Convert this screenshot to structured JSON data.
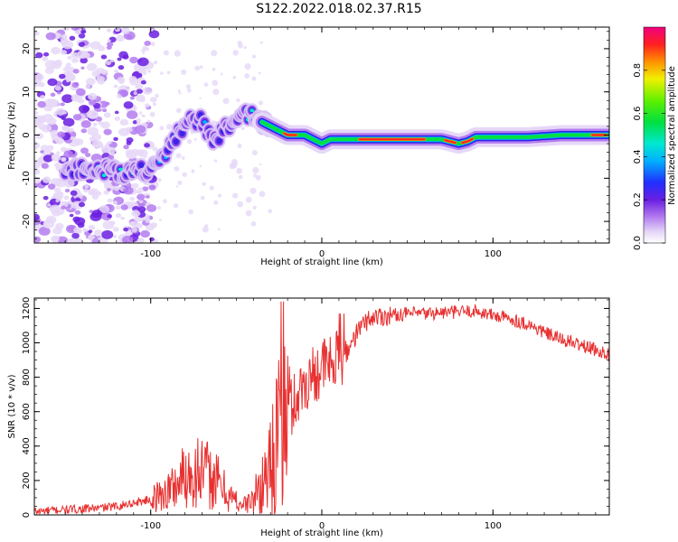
{
  "title": "S122.2022.018.02.37.R15",
  "spectrogram": {
    "type": "heatmap",
    "xlabel": "Height of straight line (km)",
    "ylabel": "Frequency (Hz)",
    "xlim": [
      -168,
      168
    ],
    "ylim": [
      -25,
      25
    ],
    "x_ticks": [
      "-100",
      "0",
      "100"
    ],
    "x_tick_values": [
      -100,
      0,
      100
    ],
    "y_ticks": [
      "-20",
      "-10",
      "0",
      "10",
      "20"
    ],
    "y_tick_values": [
      -20,
      -10,
      0,
      10,
      20
    ],
    "colorbar": {
      "label": "Normalized spectral amplitude",
      "ticks": [
        "0.0",
        "0.2",
        "0.4",
        "0.6",
        "0.8"
      ],
      "tick_values": [
        0.0,
        0.2,
        0.4,
        0.6,
        0.8
      ],
      "range": [
        0,
        1
      ]
    }
  },
  "chart_data": [
    {
      "type": "heatmap",
      "description_series": [
        {
          "name": "ridge",
          "x": [
            -145,
            -130,
            -115,
            -105,
            -100,
            -95,
            -90,
            -85,
            -80,
            -75,
            -70,
            -65,
            -60,
            -55,
            -50,
            -45,
            -40,
            -35,
            -30,
            -25,
            -20,
            -10,
            -5,
            0,
            5,
            10,
            20,
            40,
            60,
            70,
            75,
            80,
            85,
            90,
            100,
            120,
            140,
            168
          ],
          "y": [
            -8,
            -8,
            -8.5,
            -8,
            -8,
            -6,
            -3,
            0,
            2,
            4,
            3,
            -1,
            0,
            2,
            3,
            5,
            5,
            3,
            2,
            1,
            0,
            0,
            -1,
            -2,
            -1,
            -1,
            -1,
            -1,
            -1,
            -1,
            -1.5,
            -2,
            -1.5,
            -0.5,
            -0.5,
            -0.5,
            0,
            0
          ]
        }
      ]
    },
    {
      "type": "line",
      "title": "",
      "xlabel": "Height of straight line (km)",
      "ylabel": "SNR (10 * v/v)",
      "xlim": [
        -168,
        168
      ],
      "ylim": [
        0,
        1260
      ],
      "x_ticks": [
        -100,
        0,
        100
      ],
      "y_ticks": [
        0,
        200,
        400,
        600,
        800,
        1000,
        1200
      ],
      "color": "#e83030",
      "series": [
        {
          "x": [
            -168,
            -150,
            -130,
            -120,
            -110,
            -100,
            -95,
            -90,
            -85,
            -80,
            -75,
            -70,
            -65,
            -60,
            -55,
            -50,
            -45,
            -40,
            -35,
            -30,
            -25,
            -22,
            -20,
            -18,
            -15,
            -10,
            -5,
            0,
            5,
            10,
            15,
            20,
            25,
            30,
            40,
            50,
            60,
            70,
            80,
            90,
            100,
            110,
            120,
            130,
            140,
            150,
            160,
            168
          ],
          "y": [
            20,
            30,
            40,
            50,
            70,
            90,
            110,
            140,
            180,
            230,
            260,
            250,
            220,
            180,
            120,
            80,
            60,
            90,
            180,
            320,
            450,
            520,
            560,
            620,
            680,
            760,
            820,
            860,
            880,
            900,
            950,
            1050,
            1120,
            1150,
            1160,
            1170,
            1170,
            1175,
            1180,
            1185,
            1160,
            1140,
            1110,
            1060,
            1020,
            990,
            960,
            930
          ]
        }
      ]
    }
  ]
}
